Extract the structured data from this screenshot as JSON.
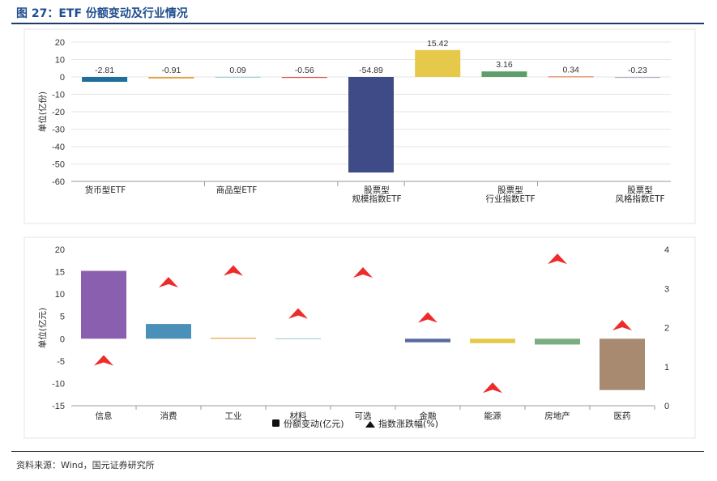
{
  "title": "图 27：ETF 份额变动及行业情况",
  "source": "资料来源：Wind，国元证券研究所",
  "chart_data": [
    {
      "type": "bar",
      "ylabel": "单位(亿份)",
      "ylim": [
        -60,
        20
      ],
      "yticks": [
        20,
        10,
        0,
        -10,
        -20,
        -30,
        -40,
        -50,
        -60
      ],
      "grid": true,
      "category_groups": [
        {
          "label_lines": [
            "货币型ETF"
          ]
        },
        {
          "label_lines": [
            "商品型ETF"
          ]
        },
        {
          "label_lines": [
            "股票型",
            "规模指数ETF"
          ]
        },
        {
          "label_lines": [
            "股票型",
            "行业指数ETF"
          ]
        },
        {
          "label_lines": [
            "股票型",
            "风格指数ETF"
          ]
        }
      ],
      "values": [
        -2.81,
        -0.91,
        0.09,
        -0.56,
        -54.89,
        15.42,
        3.16,
        0.34,
        -0.23
      ],
      "value_labels": [
        "-2.81",
        "-0.91",
        "0.09",
        "-0.56",
        "-54.89",
        "15.42",
        "3.16",
        "0.34",
        "-0.23"
      ],
      "colors": [
        "#1f6f9a",
        "#e8a33d",
        "#9ccfd6",
        "#e04848",
        "#3f4b86",
        "#e6c84a",
        "#5e9e6a",
        "#e08060",
        "#b0b0c0"
      ]
    },
    {
      "type": "bar+scatter",
      "ylabel": "单位(亿元)",
      "ylim": [
        -15,
        20
      ],
      "yticks": [
        20,
        15,
        10,
        5,
        0,
        -5,
        -10,
        -15
      ],
      "y2lim": [
        0,
        4
      ],
      "y2ticks": [
        4,
        3,
        2,
        1,
        0
      ],
      "categories": [
        "信息",
        "消费",
        "工业",
        "材料",
        "可选",
        "金融",
        "能源",
        "房地产",
        "医药"
      ],
      "series": [
        {
          "name": "份额变动(亿元)",
          "type": "bar",
          "values": [
            15.2,
            3.3,
            0.2,
            0.1,
            0,
            -0.8,
            -1.0,
            -1.3,
            -11.5
          ],
          "colors": [
            "#8a5fb0",
            "#4a90b8",
            "#e8a33d",
            "#a8d4d8",
            "#cccccc",
            "#5a6aa0",
            "#e6c84a",
            "#7aae80",
            "#a88a70"
          ]
        },
        {
          "name": "指数涨跌幅(%)",
          "type": "scatter",
          "marker": "triangle",
          "color": "#ee2b2b",
          "values": [
            1.15,
            3.15,
            3.45,
            2.35,
            3.4,
            2.25,
            0.45,
            3.75,
            2.05
          ]
        }
      ],
      "legend_position": "bottom"
    }
  ]
}
